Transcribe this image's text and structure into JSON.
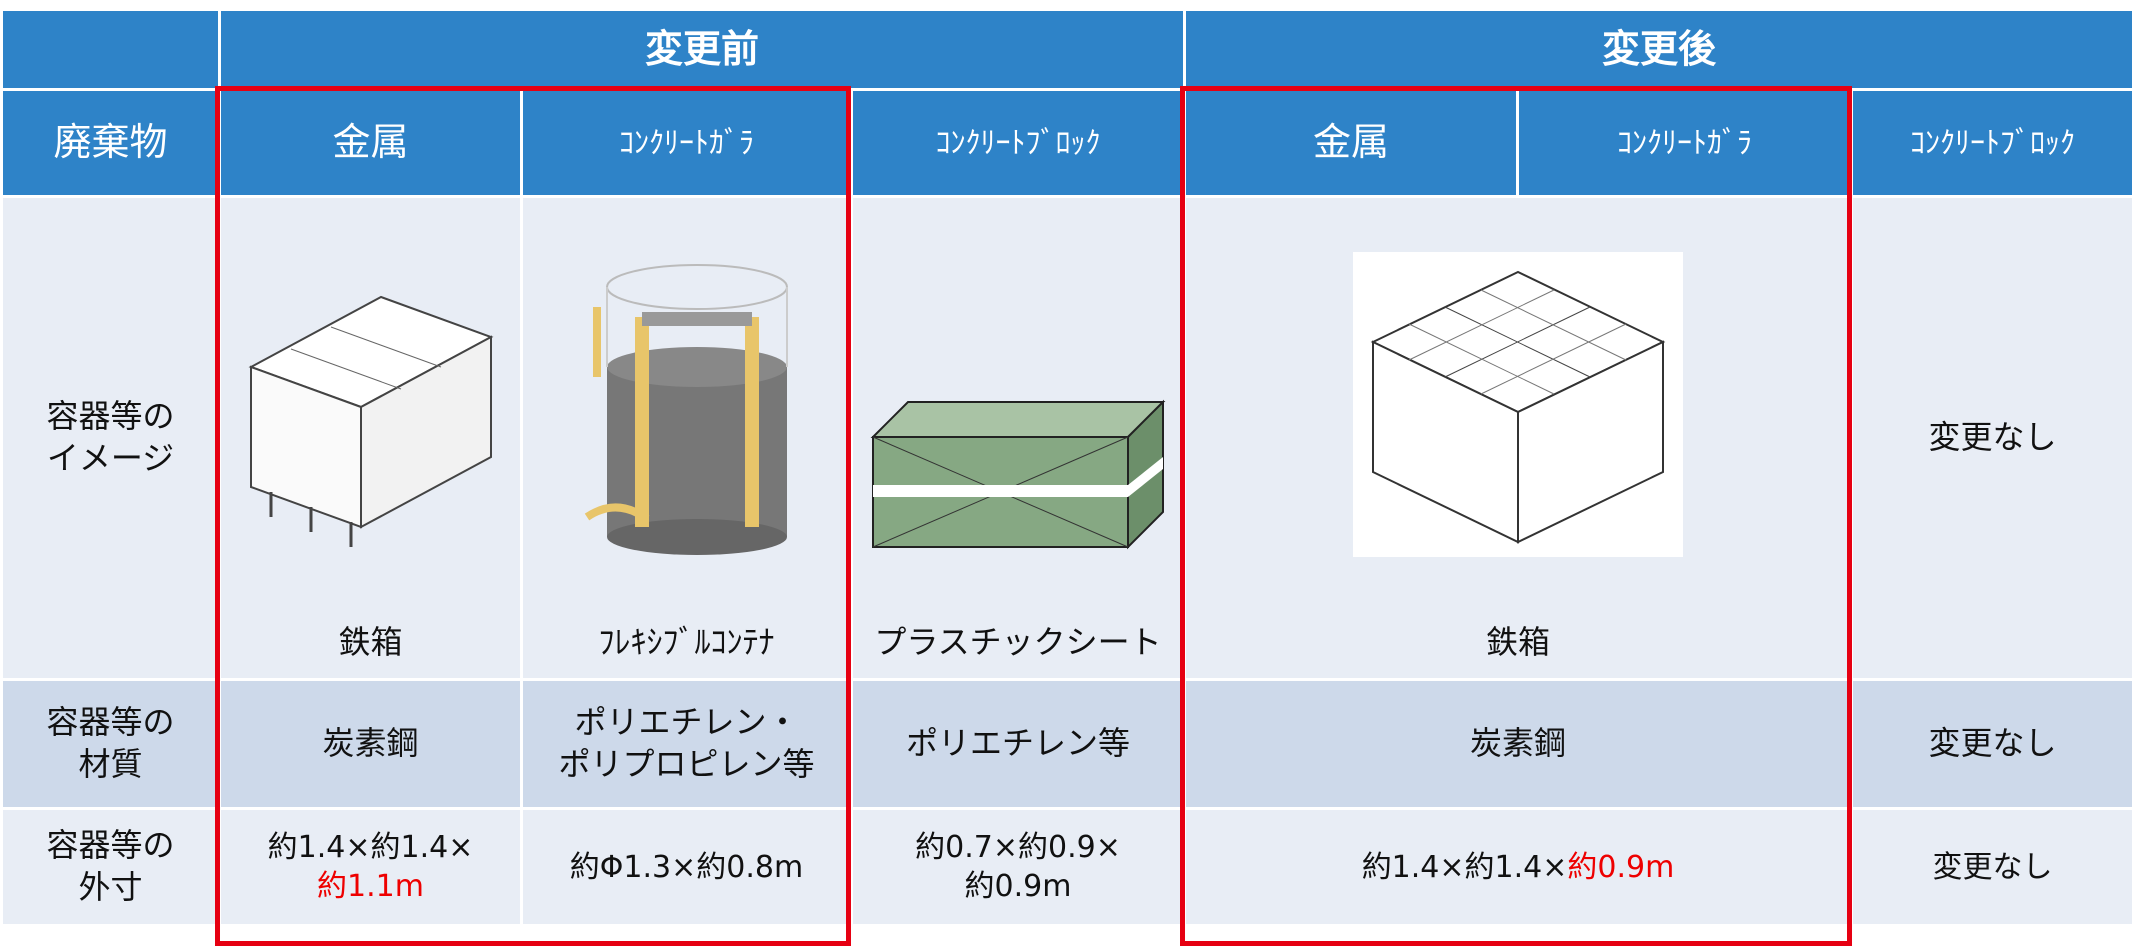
{
  "table": {
    "groups": [
      "変更前",
      "変更後"
    ],
    "header": [
      "廃棄物",
      "金属",
      "ｺﾝｸﾘｰﾄｶﾞﾗ",
      "ｺﾝｸﾘｰﾄﾌﾞﾛｯｸ",
      "金属",
      "ｺﾝｸﾘｰﾄｶﾞﾗ",
      "ｺﾝｸﾘｰﾄﾌﾞﾛｯｸ"
    ],
    "rows": [
      {
        "label": "容器等の\nイメージ",
        "cells": [
          "鉄箱",
          "ﾌﾚｷｼﾌﾞﾙｺﾝﾃﾅ",
          "プラスチックシート",
          "鉄箱",
          "変更なし"
        ]
      },
      {
        "label": "容器等の\n材質",
        "cells": [
          "炭素鋼",
          "ポリエチレン・\nポリプロピレン等",
          "ポリエチレン等",
          "炭素鋼",
          "変更なし"
        ]
      },
      {
        "label": "容器等の\n外寸",
        "cells": [
          {
            "text": "約1.4×約1.4×",
            "red": "約1.1m"
          },
          "約Φ1.3×約0.8m",
          "約0.7×約0.9×\n約0.9m",
          {
            "text": "約1.4×約1.4×",
            "red": "約0.9m"
          },
          "変更なし"
        ]
      }
    ]
  }
}
